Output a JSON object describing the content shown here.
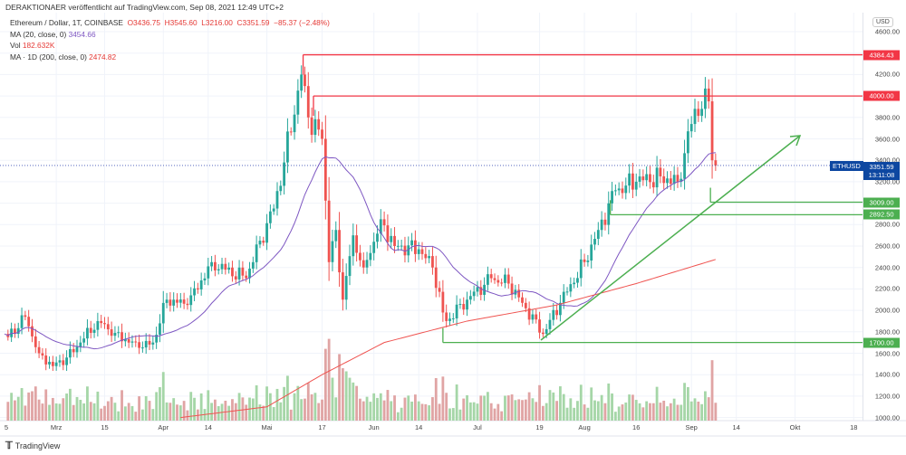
{
  "header": {
    "published": "DERAKTIONAER veröffentlicht auf TradingView.com, Sep 08, 2021 12:49 UTC+2"
  },
  "legend": {
    "symbol": "Ethereum / Dollar, 1T, COINBASE",
    "o": "O3436.75",
    "h": "H3545.60",
    "l": "L3216.00",
    "c": "C3351.59",
    "chg": "−85.37 (−2.48%)",
    "ma20_label": "MA (20, close, 0)",
    "ma20_value": "3454.66",
    "vol_label": "Vol",
    "vol_value": "182.632K",
    "ma200_label": "MA · 1D (200, close, 0)",
    "ma200_value": "2474.82"
  },
  "axis": {
    "currency": "USD",
    "ticks": [
      "4600.00",
      "4200.00",
      "3800.00",
      "3600.00",
      "3400.00",
      "3200.00",
      "2800.00",
      "2600.00",
      "2400.00",
      "2200.00",
      "2000.00",
      "1800.00",
      "1600.00",
      "1400.00",
      "1200.00",
      "1000.00"
    ],
    "tick_values": [
      4600,
      4200,
      3800,
      3600,
      3400,
      3200,
      2800,
      2600,
      2400,
      2200,
      2000,
      1800,
      1600,
      1400,
      1200,
      1000
    ]
  },
  "levels": [
    {
      "label": "4384.43",
      "value": 4384.43,
      "color": "#f23645"
    },
    {
      "label": "4000.00",
      "value": 4000,
      "color": "#f23645"
    },
    {
      "label": "3009.00",
      "value": 3009,
      "color": "#4caf50"
    },
    {
      "label": "2892.50",
      "value": 2892.5,
      "color": "#4caf50"
    },
    {
      "label": "1700.00",
      "value": 1700,
      "color": "#4caf50"
    }
  ],
  "price_tag": {
    "symbol": "ETHUSD",
    "price": "3351.59",
    "countdown": "13:11:08",
    "value": 3351.59
  },
  "time_axis": [
    "5",
    "Mrz",
    "15",
    "Apr",
    "14",
    "Mai",
    "17",
    "Jun",
    "14",
    "Jul",
    "19",
    "Aug",
    "16",
    "Sep",
    "14",
    "Okt",
    "18"
  ],
  "time_axis_days": [
    -9,
    15,
    29,
    46,
    59,
    76,
    92,
    107,
    120,
    137,
    155,
    168,
    183,
    199,
    212,
    229,
    246
  ],
  "chart_data": {
    "type": "candlestick",
    "start": "2021-02-14",
    "keypoints_day_price": [
      [
        0,
        1780
      ],
      [
        1,
        1750
      ],
      [
        6,
        1940
      ],
      [
        10,
        1600
      ],
      [
        14,
        1480
      ],
      [
        18,
        1560
      ],
      [
        22,
        1700
      ],
      [
        27,
        1900
      ],
      [
        32,
        1790
      ],
      [
        39,
        1650
      ],
      [
        43,
        1700
      ],
      [
        47,
        2100
      ],
      [
        53,
        2050
      ],
      [
        60,
        2450
      ],
      [
        64,
        2380
      ],
      [
        70,
        2300
      ],
      [
        74,
        2650
      ],
      [
        78,
        2950
      ],
      [
        81,
        3380
      ],
      [
        85,
        4050
      ],
      [
        86,
        4200
      ],
      [
        88,
        3800
      ],
      [
        92,
        3600
      ],
      [
        94,
        2450
      ],
      [
        96,
        2750
      ],
      [
        98,
        2100
      ],
      [
        101,
        2700
      ],
      [
        104,
        2400
      ],
      [
        107,
        2640
      ],
      [
        109,
        2850
      ],
      [
        113,
        2600
      ],
      [
        120,
        2570
      ],
      [
        124,
        2400
      ],
      [
        127,
        1980
      ],
      [
        128,
        1900
      ],
      [
        134,
        2100
      ],
      [
        141,
        2300
      ],
      [
        146,
        2250
      ],
      [
        150,
        2070
      ],
      [
        156,
        1780
      ],
      [
        161,
        2070
      ],
      [
        168,
        2450
      ],
      [
        172,
        2750
      ],
      [
        177,
        3120
      ],
      [
        183,
        3200
      ],
      [
        190,
        3250
      ],
      [
        195,
        3200
      ],
      [
        200,
        3880
      ],
      [
        204,
        3950
      ],
      [
        205,
        3400
      ],
      [
        206,
        3351.59
      ]
    ],
    "ma200_day_price": [
      [
        51,
        1000
      ],
      [
        76,
        1100
      ],
      [
        92,
        1400
      ],
      [
        110,
        1700
      ],
      [
        134,
        1900
      ],
      [
        160,
        2050
      ],
      [
        183,
        2250
      ],
      [
        206,
        2474.82
      ]
    ],
    "colors": {
      "up": "#26a69a",
      "down": "#ef5350",
      "ma20": "#7e57c2",
      "ma200": "#ef5350",
      "trend": "#4caf50"
    }
  },
  "footer": {
    "brand": "TradingView"
  }
}
